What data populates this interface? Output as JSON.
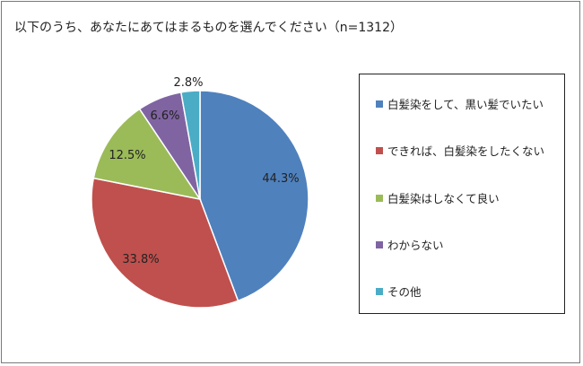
{
  "chart_data": {
    "type": "pie",
    "title": "以下のうち、あなたにあてはまるものを選んでください（n=1312）",
    "categories": [
      "白髪染をして、黒い髪でいたい",
      "できれば、白髪染をしたくない",
      "白髪染はしなくて良い",
      "わからない",
      "その他"
    ],
    "values": [
      44.3,
      33.8,
      12.5,
      6.6,
      2.8
    ],
    "labels": [
      "44.3%",
      "33.8%",
      "12.5%",
      "6.6%",
      "2.8%"
    ],
    "colors": [
      "#4f81bd",
      "#c0504d",
      "#9bbb59",
      "#8064a2",
      "#4bacc6"
    ],
    "start_angle_deg": 0,
    "direction": "clockwise",
    "legend_position": "right"
  }
}
